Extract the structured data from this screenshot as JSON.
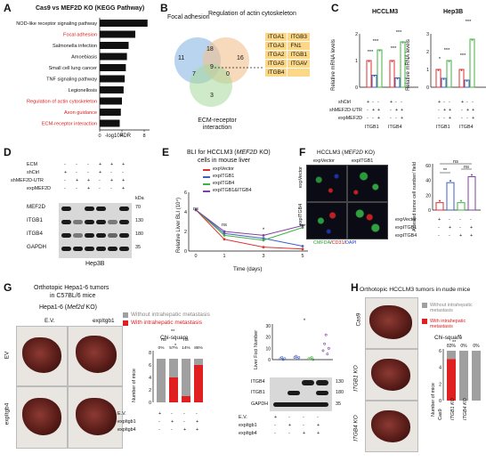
{
  "panels": {
    "A": "A",
    "B": "B",
    "C": "C",
    "D": "D",
    "E": "E",
    "F": "F",
    "G": "G",
    "H": "H"
  },
  "panelA": {
    "title": "Cas9 vs MEF2D KO (KEGG Pathway)",
    "xlabel": "-log10FDR",
    "ticks": [
      "0",
      "4",
      "8"
    ],
    "pathways": [
      {
        "label": "NOD-like receptor signaling pathway",
        "value": 8.6,
        "highlight": false
      },
      {
        "label": "Focal adhesion",
        "value": 6.4,
        "highlight": true
      },
      {
        "label": "Salmonella infection",
        "value": 5.2,
        "highlight": false
      },
      {
        "label": "Amoebiasis",
        "value": 4.9,
        "highlight": false
      },
      {
        "label": "Small cell lung cancer",
        "value": 4.7,
        "highlight": false
      },
      {
        "label": "TNF signaling pathway",
        "value": 4.5,
        "highlight": false
      },
      {
        "label": "Legionellosis",
        "value": 4.3,
        "highlight": false
      },
      {
        "label": "Regulation of actin cytoskeleton",
        "value": 4.0,
        "highlight": true
      },
      {
        "label": "Axon guidance",
        "value": 3.8,
        "highlight": true
      },
      {
        "label": "ECM-receptor interaction",
        "value": 3.6,
        "highlight": true
      }
    ]
  },
  "panelB": {
    "focal": "Focal adhesion",
    "actin": "Regulation of actin cytoskeleton",
    "ecm": "ECM-receptor interaction",
    "n11": "11",
    "n18": "18",
    "n16": "16",
    "n7": "7",
    "n9": "9",
    "n0": "0",
    "n3": "3",
    "genes": [
      [
        "ITGA1",
        "ITGB3"
      ],
      [
        "ITGA3",
        "FN1"
      ],
      [
        "ITGA2",
        "ITGB1"
      ],
      [
        "ITGA5",
        "ITGAV"
      ],
      [
        "ITGB4",
        ""
      ]
    ]
  },
  "panelC": {
    "ylabel": "Relative mRNA levels",
    "left": {
      "title": "HCCLM3",
      "yticks": [
        "0",
        "1",
        "2"
      ],
      "ylim": [
        0,
        2
      ]
    },
    "right": {
      "title": "Hep3B",
      "yticks": [
        "0",
        "1",
        "2",
        "3"
      ],
      "ylim": [
        0,
        3
      ]
    },
    "rows": [
      "shCtrl",
      "shMEF2D-UTR",
      "expMEF2D"
    ],
    "signs": {
      "shCtrl": [
        "+",
        "-",
        "-"
      ],
      "shMEF2D": [
        "-",
        "+",
        "+"
      ],
      "exp": [
        "-",
        "-",
        "+"
      ]
    },
    "genes": [
      "ITGB1",
      "ITGB4"
    ],
    "sig": "***",
    "sig2": "*",
    "bars": {
      "hcclm3_itgb1": [
        1.0,
        0.45,
        1.4
      ],
      "hcclm3_itgb4": [
        1.0,
        0.35,
        1.7
      ],
      "hep3b_itgb1": [
        1.0,
        0.5,
        1.5
      ],
      "hep3b_itgb4": [
        1.0,
        0.4,
        2.7
      ]
    },
    "colors": [
      "#e03030",
      "#4060c0",
      "#40b040"
    ]
  },
  "panelD": {
    "rows": [
      "ECM",
      "shCtrl",
      "shMEF2D-UTR",
      "expMEF2D"
    ],
    "signs": [
      [
        "-",
        "-",
        "-",
        "+",
        "+",
        "+"
      ],
      [
        "+",
        "-",
        "-",
        "+",
        "-",
        "-"
      ],
      [
        "-",
        "+",
        "+",
        "-",
        "+",
        "+"
      ],
      [
        "-",
        "-",
        "+",
        "-",
        "-",
        "+"
      ]
    ],
    "bands": [
      "MEF2D",
      "ITGB1",
      "ITGB4",
      "GAPDH"
    ],
    "kda": "kDa",
    "mw": [
      "70",
      "130",
      "180",
      "35"
    ],
    "cell": "Hep3B"
  },
  "panelE": {
    "title1": "BLI for HCCLM3 (",
    "title_it": "MEF2D",
    "title2": " KO)",
    "title3": "cells in mouse liver",
    "legend": [
      "expVector",
      "expITGB1",
      "expITGB4",
      "expITGB1&ITGB4"
    ],
    "colors": [
      "#e03030",
      "#4060c0",
      "#40b040",
      "#8040a0"
    ],
    "ylabel": "Relative Liver BLI (10⁴)",
    "xlabel": "Time (days)",
    "yticks": [
      "0",
      "2",
      "4",
      "6"
    ],
    "xticks": [
      "0",
      "1",
      "3",
      "5"
    ],
    "ns1": "ns",
    "ns2": "ns",
    "s1": "*",
    "s2": "***",
    "chart_data": {
      "type": "line",
      "x": [
        0,
        1,
        3,
        5
      ],
      "series": [
        {
          "name": "expVector",
          "values": [
            4.2,
            1.2,
            0.4,
            0.2
          ]
        },
        {
          "name": "expITGB1",
          "values": [
            4.2,
            1.8,
            1.3,
            0.5
          ]
        },
        {
          "name": "expITGB4",
          "values": [
            4.2,
            1.6,
            1.1,
            2.4
          ]
        },
        {
          "name": "expITGB1&ITGB4",
          "values": [
            4.2,
            2.0,
            1.6,
            2.6
          ]
        }
      ],
      "ylim": [
        0,
        6
      ]
    }
  },
  "panelF": {
    "title": "HCCLM3 (",
    "title_it": "MEF2D",
    "title2": " KO)",
    "col1": "expVector",
    "col2": "expITGB1",
    "row1": "expVector",
    "row2": "expITGB4",
    "stain_a": "CMFDA",
    "stain_b": "CD31",
    "stain_c": "DAPI",
    "ylabel": "Arrested tumor cell number/ field",
    "yticks": [
      "0",
      "20",
      "40",
      "60"
    ],
    "sig": [
      "**",
      "ns",
      "ns"
    ],
    "rows": [
      "expVector",
      "expITGB1",
      "expITGB4"
    ],
    "signs": [
      [
        "+",
        "-",
        "-",
        "-"
      ],
      [
        "-",
        "+",
        "-",
        "+"
      ],
      [
        "-",
        "-",
        "+",
        "+"
      ]
    ],
    "bars": [
      10,
      37,
      10,
      45
    ],
    "colors": [
      "#e03030",
      "#4060c0",
      "#40b040",
      "#8040a0"
    ]
  },
  "panelG": {
    "header1": "Orthotopic Hepa1-6 tumors",
    "header2": "in C57BL/6 mice",
    "sub": "Hepa1-6 (",
    "sub_it": "Mef2d",
    "sub2": " KO)",
    "col1": "E.V.",
    "col2": "expItgb1",
    "row1": "EV",
    "row2": "expItgb4",
    "legend_no": "Without intrahepatic metastasis",
    "legend_yes": "With intrahepatic metastasis",
    "chisq": "Chi-square",
    "pct": [
      "0%",
      "57%",
      "14%",
      "86%"
    ],
    "ylabel": "Number of mice",
    "yticks": [
      "0",
      "2",
      "4",
      "6",
      "8"
    ],
    "rows": [
      "E.V.",
      "expItgb1",
      "expItgb4"
    ],
    "signs": [
      [
        "+",
        "-",
        "-",
        "-"
      ],
      [
        "-",
        "+",
        "-",
        "+"
      ],
      [
        "-",
        "-",
        "+",
        "+"
      ]
    ],
    "ns": "ns",
    "star": "*",
    "star2": "**",
    "foci_ylabel": "Liver Foci Number",
    "foci_yticks": [
      "0",
      "10",
      "20",
      "30"
    ],
    "wb": [
      "ITGB4",
      "ITGB1",
      "GAPDH"
    ],
    "wb_mw": [
      "130",
      "180",
      "35"
    ],
    "foci_rows": [
      "E.V.",
      "expItgb1",
      "expItgb4"
    ]
  },
  "panelH": {
    "header": "Orthotopic HCCLM3 tumors in nude mice",
    "rows": [
      "Cas9",
      "ITGB1 KO",
      "ITGB4 KO"
    ],
    "legend_no": "Without intrahepatic metastasis",
    "legend_yes": "With intrahepatic metastasis",
    "chisq": "Chi-square",
    "pct": [
      "83%",
      "0%",
      "0%"
    ],
    "ylabel": "Number of mice",
    "yticks": [
      "0",
      "2",
      "4",
      "6"
    ],
    "xcats": [
      "Cas9",
      "ITGB1 KO",
      "ITGB4 KO"
    ],
    "sig": "**"
  }
}
